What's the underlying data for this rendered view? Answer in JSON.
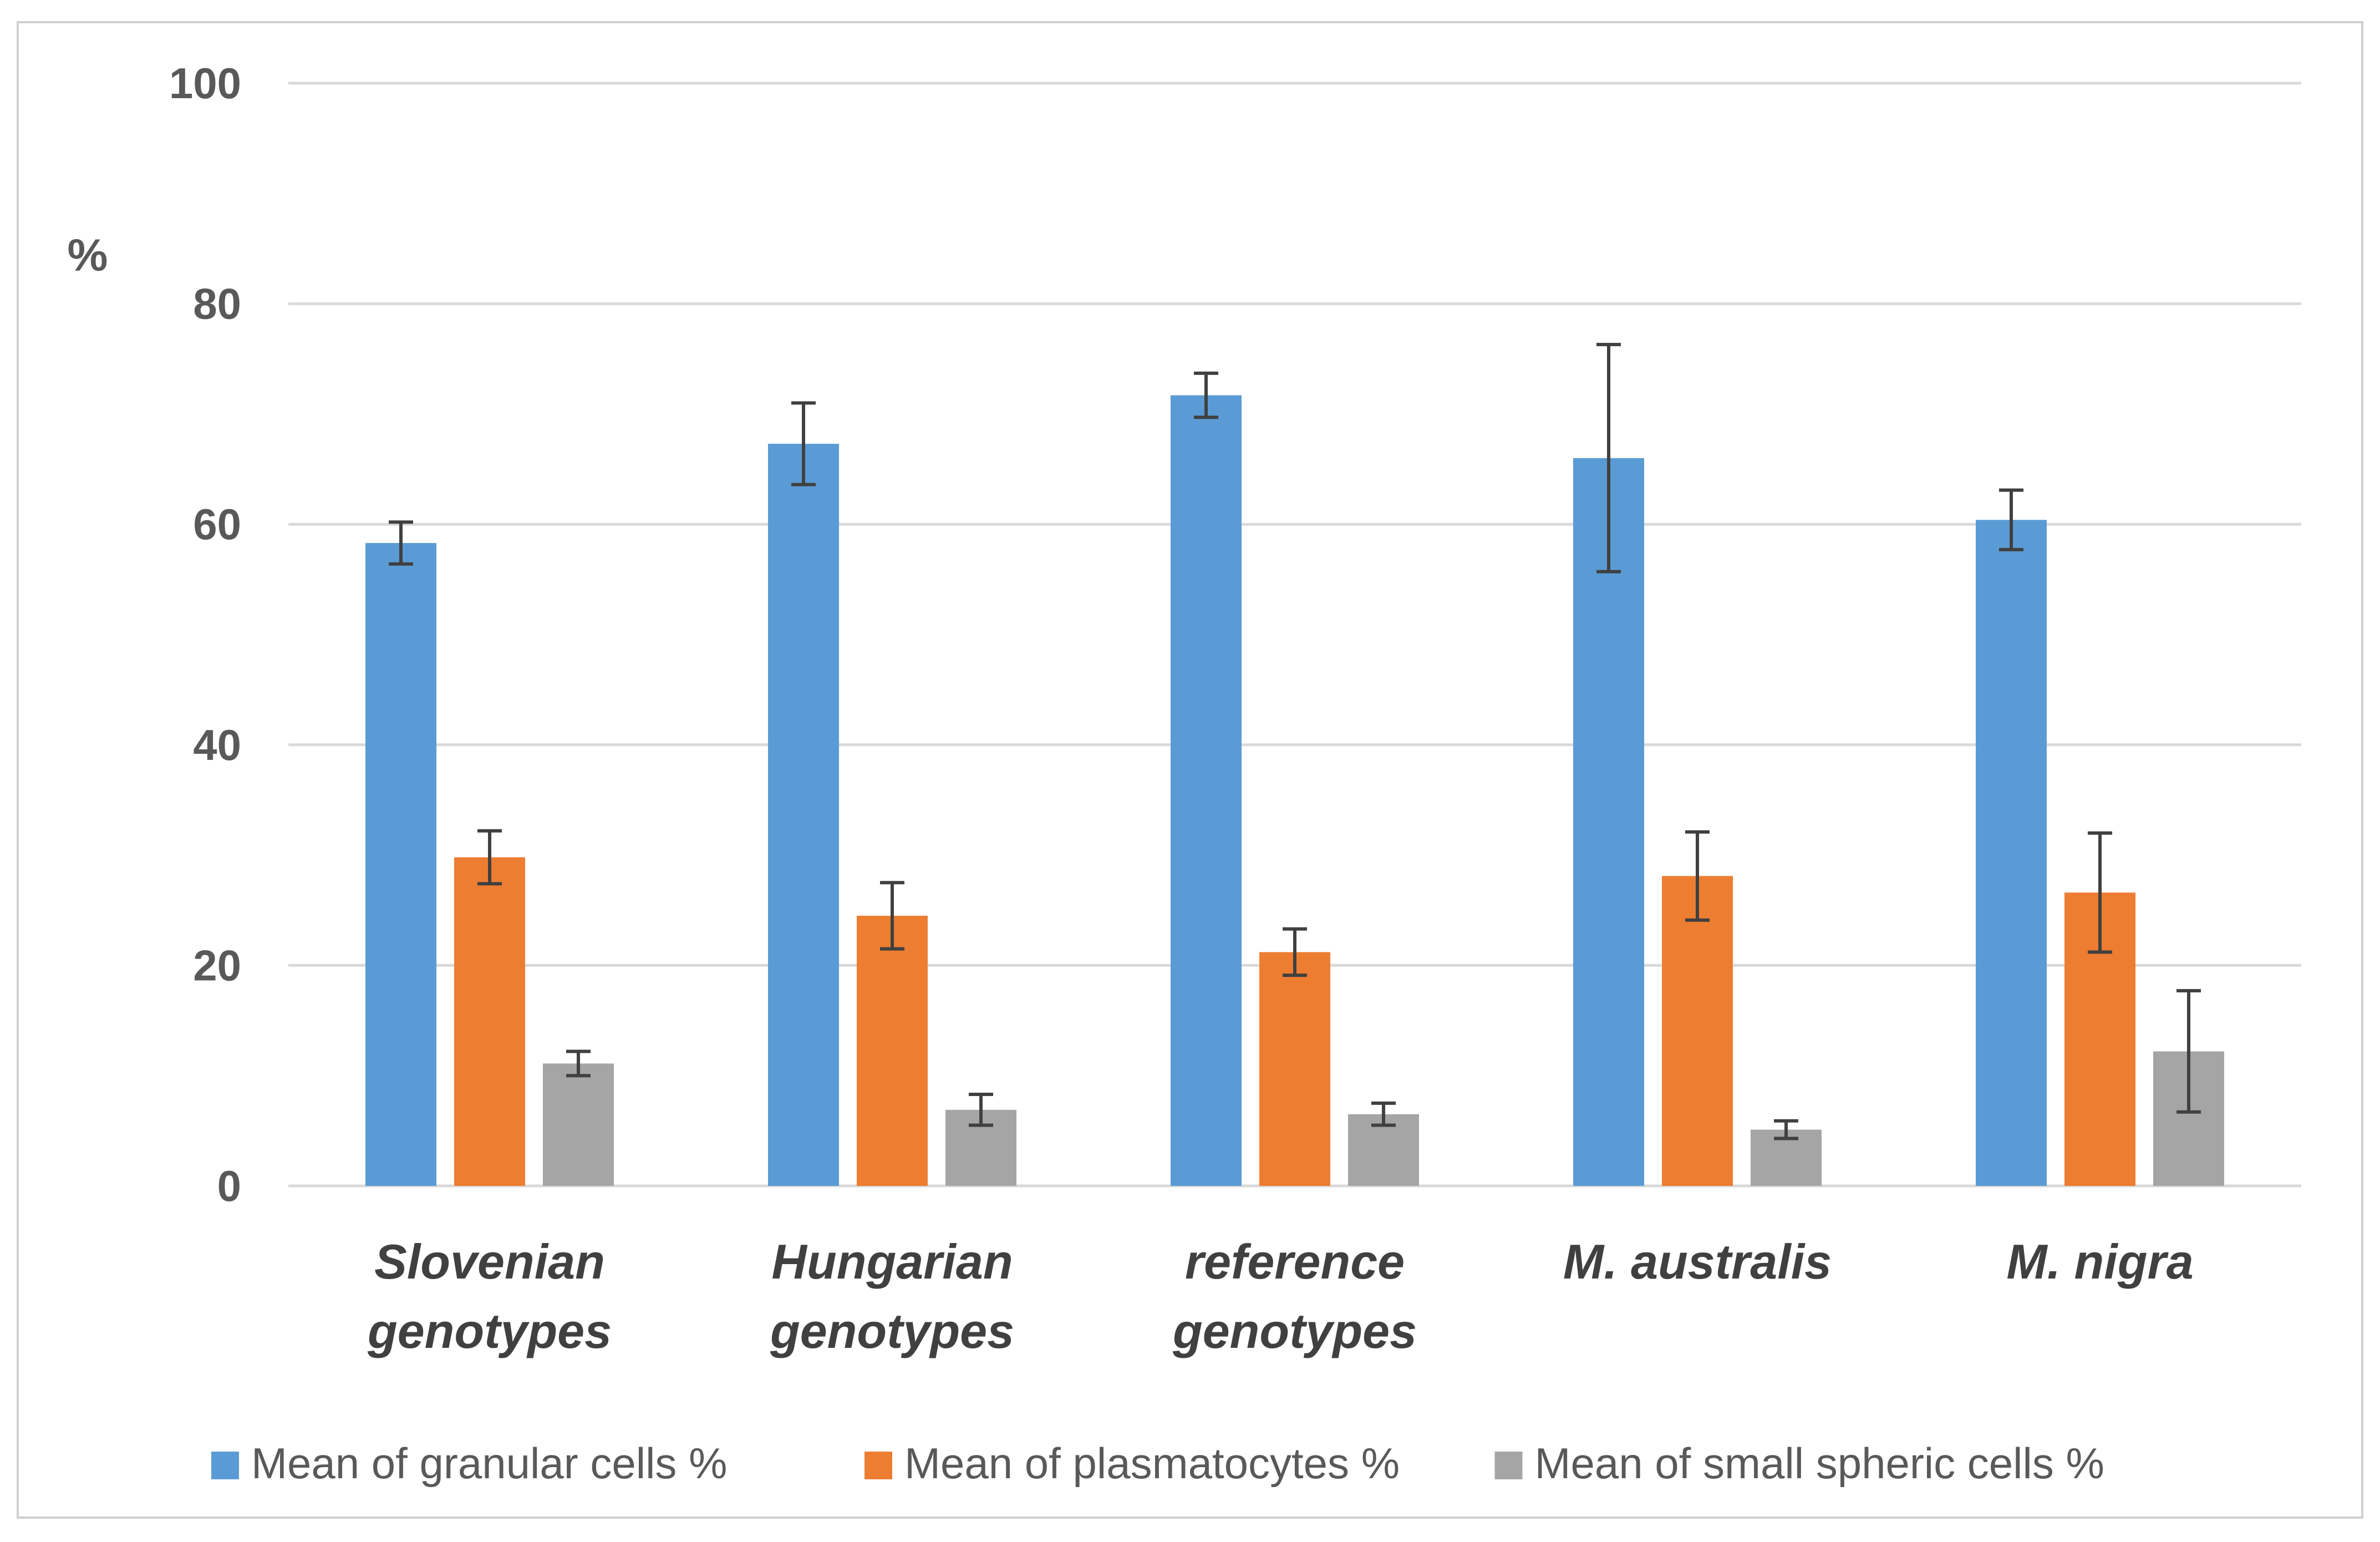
{
  "chart_data": {
    "type": "bar",
    "title": "",
    "ylabel": "%",
    "xlabel": "",
    "ylim": [
      0,
      100
    ],
    "yticks": [
      0,
      20,
      40,
      60,
      80,
      100
    ],
    "grid": true,
    "legend_position": "bottom",
    "categories": [
      [
        "Slovenian",
        "genotypes"
      ],
      [
        "Hungarian",
        "genotypes"
      ],
      [
        "reference",
        "genotypes"
      ],
      [
        "M. australis"
      ],
      [
        "M. nigra"
      ]
    ],
    "series": [
      {
        "name": "Mean of granular cells %",
        "color": "#5b9bd5",
        "values": [
          58.3,
          67.3,
          71.7,
          66.0,
          60.4
        ],
        "errors": [
          1.9,
          3.7,
          2.0,
          10.3,
          2.7
        ]
      },
      {
        "name": "Mean of plasmatocytes %",
        "color": "#ed7d31",
        "values": [
          29.8,
          24.5,
          21.2,
          28.1,
          26.6
        ],
        "errors": [
          2.4,
          3.0,
          2.1,
          4.0,
          5.4
        ]
      },
      {
        "name": "Mean of small spheric cells %",
        "color": "#a5a5a5",
        "values": [
          11.1,
          6.9,
          6.5,
          5.1,
          12.2
        ],
        "errors": [
          1.1,
          1.4,
          1.0,
          0.8,
          5.5
        ]
      }
    ]
  }
}
